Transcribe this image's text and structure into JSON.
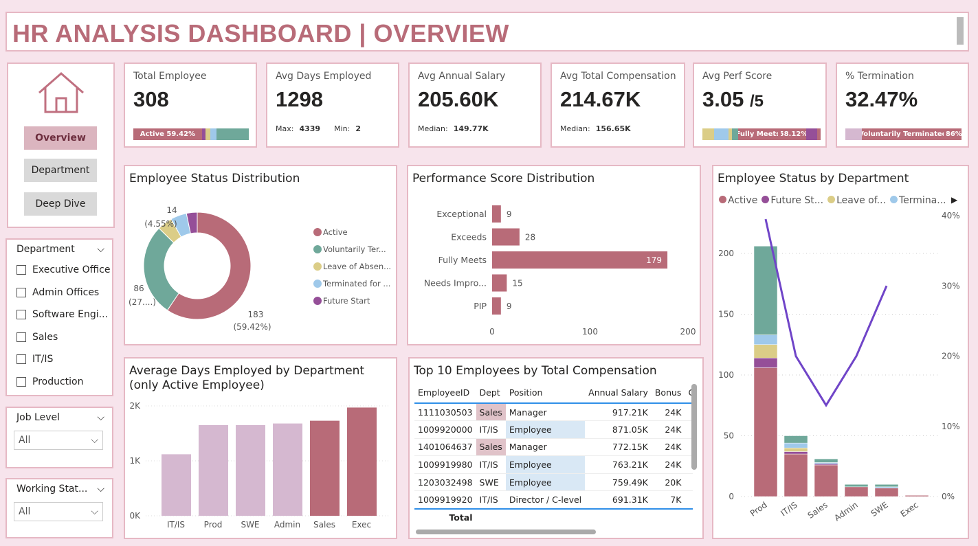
{
  "header": {
    "title": "HR ANALYSIS DASHBOARD | OVERVIEW"
  },
  "nav": {
    "items": [
      {
        "label": "Overview",
        "active": true
      },
      {
        "label": "Department"
      },
      {
        "label": "Deep Dive"
      }
    ]
  },
  "kpis": {
    "total_employee": {
      "label": "Total Employee",
      "value": "308",
      "bar_label": "Active",
      "bar_pct": "59.42%"
    },
    "avg_days": {
      "label": "Avg Days Employed",
      "value": "1298",
      "max_label": "Max:",
      "max": "4339",
      "min_label": "Min:",
      "min": "2"
    },
    "avg_salary": {
      "label": "Avg Annual Salary",
      "value": "205.60K",
      "median_label": "Median:",
      "median": "149.77K"
    },
    "avg_comp": {
      "label": "Avg Total Compensation",
      "value": "214.67K",
      "median_label": "Median:",
      "median": "156.65K"
    },
    "perf": {
      "label": "Avg Perf Score",
      "value": "3.05",
      "suffix": "/5",
      "bar_label": "Fully Meets",
      "bar_pct": "58.12%"
    },
    "termination": {
      "label": "% Termination",
      "value": "32.47%",
      "bar_label": "Voluntarily Terminated",
      "bar_pct": "86%"
    }
  },
  "filters": {
    "department": {
      "label": "Department",
      "options": [
        "Executive Office",
        "Admin Offices",
        "Software Engi...",
        "Sales",
        "IT/IS",
        "Production"
      ]
    },
    "job_level": {
      "label": "Job Level",
      "value": "All"
    },
    "working_status": {
      "label": "Working Stat...",
      "value": "All"
    }
  },
  "colors": {
    "active": "#b86b78",
    "voluntarily_terminated": "#6fa89a",
    "leave": "#dbcd87",
    "terminated_cause": "#9fc9ea",
    "future": "#954f98",
    "light": "#d5b8d0",
    "line": "#7045c8"
  },
  "chart_data": [
    {
      "type": "pie",
      "title": "Employee Status Distribution",
      "categories": [
        "Active",
        "Voluntarily Ter...",
        "Leave of Absen...",
        "Terminated for ...",
        "Future Start"
      ],
      "values": [
        183,
        86,
        14,
        15,
        10
      ],
      "data_labels": [
        {
          "value": "183",
          "pct": "(59.42%)"
        },
        {
          "value": "86",
          "pct": "(27....)"
        },
        {
          "value": "14",
          "pct": "(4.55%)"
        }
      ],
      "legend": "right"
    },
    {
      "type": "bar",
      "orientation": "horizontal",
      "title": "Performance Score Distribution",
      "categories": [
        "Exceptional",
        "Exceeds",
        "Fully Meets",
        "Needs Impro...",
        "PIP"
      ],
      "values": [
        9,
        28,
        179,
        15,
        9
      ],
      "xlim": [
        0,
        200
      ],
      "ticks": [
        "0",
        "100",
        "200"
      ]
    },
    {
      "type": "bar",
      "title": "Average Days Employed by Department (only Active Employee)",
      "categories": [
        "IT/IS",
        "Prod",
        "SWE",
        "Admin",
        "Sales",
        "Exec"
      ],
      "values": [
        1120,
        1650,
        1650,
        1680,
        1730,
        1970
      ],
      "highlight": [
        false,
        false,
        false,
        false,
        true,
        true
      ],
      "ylim": [
        0,
        2000
      ],
      "ticks": [
        "0K",
        "1K",
        "2K"
      ]
    },
    {
      "type": "bar",
      "stacked": true,
      "title": "Employee Status by Department",
      "categories": [
        "Prod",
        "IT/IS",
        "Sales",
        "Admin",
        "SWE",
        "Exec"
      ],
      "legend_labels": [
        "Active",
        "Future St...",
        "Leave of...",
        "Termina..."
      ],
      "series": [
        {
          "name": "Active",
          "values": [
            106,
            35,
            26,
            8,
            7,
            1
          ]
        },
        {
          "name": "Future Start",
          "values": [
            8,
            2,
            1,
            0,
            0,
            0
          ]
        },
        {
          "name": "Leave of Absence",
          "values": [
            11,
            3,
            0,
            0,
            0,
            0
          ]
        },
        {
          "name": "Terminated for Cause",
          "values": [
            8,
            4,
            1,
            0,
            1,
            0
          ]
        },
        {
          "name": "Voluntarily Terminated",
          "values": [
            73,
            6,
            3,
            2,
            2,
            0
          ]
        }
      ],
      "line": {
        "values": [
          0.395,
          0.2,
          0.13,
          0.2,
          0.3,
          null
        ]
      },
      "ylim": [
        0,
        220
      ],
      "yticks": [
        "0",
        "50",
        "100",
        "150",
        "200"
      ],
      "y2ticks": [
        "0%",
        "10%",
        "20%",
        "30%",
        "40%"
      ],
      "y2lim": [
        0,
        0.42
      ],
      "legend": "top"
    }
  ],
  "table": {
    "title": "Top 10 Employees by Total Compensation",
    "columns": [
      "EmployeeID",
      "Dept",
      "Position",
      "Annual Salary",
      "Bonus",
      "Co"
    ],
    "rows": [
      [
        "1111030503",
        "Sales",
        "Manager",
        "917.21K",
        "24K"
      ],
      [
        "1009920000",
        "IT/IS",
        "Employee",
        "871.05K",
        "24K"
      ],
      [
        "1401064637",
        "Sales",
        "Manager",
        "772.15K",
        "24K"
      ],
      [
        "1009919980",
        "IT/IS",
        "Employee",
        "763.21K",
        "24K"
      ],
      [
        "1203032498",
        "SWE",
        "Employee",
        "759.49K",
        "20K"
      ],
      [
        "1009919920",
        "IT/IS",
        "Director / C-level",
        "691.31K",
        "7K"
      ]
    ],
    "total_label": "Total"
  }
}
